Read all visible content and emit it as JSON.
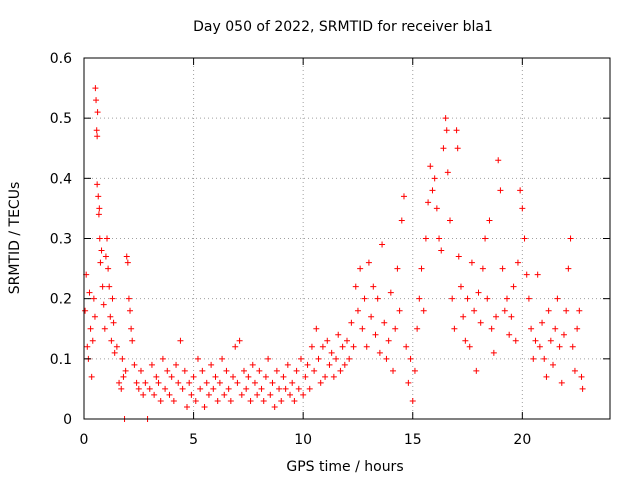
{
  "chart_data": {
    "type": "scatter",
    "title": "Day 050 of 2022, SRMTID for receiver bla1",
    "xlabel": "GPS time / hours",
    "ylabel": "SRMTID / TECUs",
    "xlim": [
      0,
      24
    ],
    "ylim": [
      0,
      0.6
    ],
    "x_ticks": [
      0,
      5,
      10,
      15,
      20
    ],
    "x_tick_labels": [
      "0",
      "5",
      "10",
      "15",
      "20"
    ],
    "y_ticks": [
      0,
      0.1,
      0.2,
      0.3,
      0.4,
      0.5,
      0.6
    ],
    "y_tick_labels": [
      "0",
      "0.1",
      "0.2",
      "0.3",
      "0.4",
      "0.5",
      "0.6"
    ],
    "grid": true,
    "marker": "plus",
    "series": [
      {
        "name": "SRMTID",
        "color": "#ff0000",
        "points": [
          [
            0.05,
            0.18
          ],
          [
            0.1,
            0.24
          ],
          [
            0.15,
            0.12
          ],
          [
            0.2,
            0.1
          ],
          [
            0.25,
            0.21
          ],
          [
            0.3,
            0.15
          ],
          [
            0.35,
            0.07
          ],
          [
            0.4,
            0.13
          ],
          [
            0.45,
            0.2
          ],
          [
            0.5,
            0.17
          ],
          [
            0.52,
            0.55
          ],
          [
            0.55,
            0.53
          ],
          [
            0.58,
            0.48
          ],
          [
            0.6,
            0.47
          ],
          [
            0.62,
            0.51
          ],
          [
            0.6,
            0.39
          ],
          [
            0.65,
            0.37
          ],
          [
            0.68,
            0.34
          ],
          [
            0.7,
            0.35
          ],
          [
            0.72,
            0.3
          ],
          [
            0.75,
            0.26
          ],
          [
            0.8,
            0.28
          ],
          [
            0.85,
            0.22
          ],
          [
            0.9,
            0.19
          ],
          [
            0.95,
            0.15
          ],
          [
            1.0,
            0.27
          ],
          [
            1.05,
            0.3
          ],
          [
            1.1,
            0.25
          ],
          [
            1.15,
            0.22
          ],
          [
            1.2,
            0.17
          ],
          [
            1.25,
            0.13
          ],
          [
            1.3,
            0.2
          ],
          [
            1.35,
            0.16
          ],
          [
            1.4,
            0.11
          ],
          [
            1.5,
            0.12
          ],
          [
            1.6,
            0.06
          ],
          [
            1.7,
            0.05
          ],
          [
            1.75,
            0.1
          ],
          [
            1.8,
            0.07
          ],
          [
            1.85,
            0.0
          ],
          [
            1.9,
            0.08
          ],
          [
            1.95,
            0.27
          ],
          [
            2.0,
            0.26
          ],
          [
            2.05,
            0.2
          ],
          [
            2.1,
            0.18
          ],
          [
            2.15,
            0.15
          ],
          [
            2.2,
            0.13
          ],
          [
            2.3,
            0.09
          ],
          [
            2.4,
            0.06
          ],
          [
            2.5,
            0.05
          ],
          [
            2.6,
            0.08
          ],
          [
            2.7,
            0.04
          ],
          [
            2.8,
            0.06
          ],
          [
            2.9,
            0.0
          ],
          [
            3.0,
            0.05
          ],
          [
            3.1,
            0.09
          ],
          [
            3.2,
            0.04
          ],
          [
            3.3,
            0.07
          ],
          [
            3.4,
            0.06
          ],
          [
            3.5,
            0.03
          ],
          [
            3.6,
            0.1
          ],
          [
            3.7,
            0.05
          ],
          [
            3.8,
            0.08
          ],
          [
            3.9,
            0.04
          ],
          [
            4.0,
            0.07
          ],
          [
            4.1,
            0.03
          ],
          [
            4.2,
            0.09
          ],
          [
            4.3,
            0.06
          ],
          [
            4.4,
            0.13
          ],
          [
            4.5,
            0.05
          ],
          [
            4.6,
            0.08
          ],
          [
            4.7,
            0.02
          ],
          [
            4.8,
            0.06
          ],
          [
            4.9,
            0.04
          ],
          [
            5.0,
            0.07
          ],
          [
            5.1,
            0.03
          ],
          [
            5.2,
            0.1
          ],
          [
            5.3,
            0.05
          ],
          [
            5.4,
            0.08
          ],
          [
            5.5,
            0.02
          ],
          [
            5.6,
            0.06
          ],
          [
            5.7,
            0.04
          ],
          [
            5.8,
            0.09
          ],
          [
            5.9,
            0.05
          ],
          [
            6.0,
            0.07
          ],
          [
            6.1,
            0.03
          ],
          [
            6.2,
            0.06
          ],
          [
            6.3,
            0.1
          ],
          [
            6.4,
            0.04
          ],
          [
            6.5,
            0.08
          ],
          [
            6.6,
            0.05
          ],
          [
            6.7,
            0.03
          ],
          [
            6.8,
            0.07
          ],
          [
            6.9,
            0.12
          ],
          [
            7.0,
            0.06
          ],
          [
            7.1,
            0.13
          ],
          [
            7.2,
            0.04
          ],
          [
            7.3,
            0.08
          ],
          [
            7.4,
            0.05
          ],
          [
            7.5,
            0.07
          ],
          [
            7.6,
            0.03
          ],
          [
            7.7,
            0.09
          ],
          [
            7.8,
            0.06
          ],
          [
            7.9,
            0.04
          ],
          [
            8.0,
            0.08
          ],
          [
            8.1,
            0.05
          ],
          [
            8.2,
            0.03
          ],
          [
            8.3,
            0.07
          ],
          [
            8.4,
            0.1
          ],
          [
            8.5,
            0.04
          ],
          [
            8.6,
            0.06
          ],
          [
            8.7,
            0.02
          ],
          [
            8.8,
            0.08
          ],
          [
            8.9,
            0.05
          ],
          [
            9.0,
            0.03
          ],
          [
            9.1,
            0.07
          ],
          [
            9.2,
            0.05
          ],
          [
            9.3,
            0.09
          ],
          [
            9.4,
            0.04
          ],
          [
            9.5,
            0.06
          ],
          [
            9.6,
            0.03
          ],
          [
            9.7,
            0.08
          ],
          [
            9.8,
            0.05
          ],
          [
            9.9,
            0.1
          ],
          [
            10.0,
            0.04
          ],
          [
            10.1,
            0.07
          ],
          [
            10.2,
            0.09
          ],
          [
            10.3,
            0.05
          ],
          [
            10.4,
            0.12
          ],
          [
            10.5,
            0.08
          ],
          [
            10.6,
            0.15
          ],
          [
            10.7,
            0.1
          ],
          [
            10.8,
            0.06
          ],
          [
            10.9,
            0.12
          ],
          [
            11.0,
            0.07
          ],
          [
            11.1,
            0.13
          ],
          [
            11.2,
            0.09
          ],
          [
            11.3,
            0.11
          ],
          [
            11.4,
            0.07
          ],
          [
            11.5,
            0.1
          ],
          [
            11.6,
            0.14
          ],
          [
            11.7,
            0.08
          ],
          [
            11.8,
            0.12
          ],
          [
            11.9,
            0.09
          ],
          [
            12.0,
            0.13
          ],
          [
            12.1,
            0.1
          ],
          [
            12.2,
            0.16
          ],
          [
            12.3,
            0.12
          ],
          [
            12.4,
            0.22
          ],
          [
            12.5,
            0.18
          ],
          [
            12.6,
            0.25
          ],
          [
            12.7,
            0.15
          ],
          [
            12.8,
            0.2
          ],
          [
            12.9,
            0.12
          ],
          [
            13.0,
            0.26
          ],
          [
            13.1,
            0.17
          ],
          [
            13.2,
            0.22
          ],
          [
            13.3,
            0.14
          ],
          [
            13.4,
            0.2
          ],
          [
            13.5,
            0.11
          ],
          [
            13.6,
            0.29
          ],
          [
            13.7,
            0.16
          ],
          [
            13.8,
            0.1
          ],
          [
            13.9,
            0.13
          ],
          [
            14.0,
            0.21
          ],
          [
            14.1,
            0.08
          ],
          [
            14.2,
            0.15
          ],
          [
            14.3,
            0.25
          ],
          [
            14.4,
            0.18
          ],
          [
            14.5,
            0.33
          ],
          [
            14.6,
            0.37
          ],
          [
            14.7,
            0.12
          ],
          [
            14.8,
            0.06
          ],
          [
            14.9,
            0.1
          ],
          [
            15.0,
            0.03
          ],
          [
            15.1,
            0.08
          ],
          [
            15.2,
            0.15
          ],
          [
            15.3,
            0.2
          ],
          [
            15.4,
            0.25
          ],
          [
            15.5,
            0.18
          ],
          [
            15.6,
            0.3
          ],
          [
            15.7,
            0.36
          ],
          [
            15.8,
            0.42
          ],
          [
            15.9,
            0.38
          ],
          [
            16.0,
            0.4
          ],
          [
            16.1,
            0.35
          ],
          [
            16.2,
            0.3
          ],
          [
            16.3,
            0.28
          ],
          [
            16.4,
            0.45
          ],
          [
            16.5,
            0.5
          ],
          [
            16.55,
            0.48
          ],
          [
            16.6,
            0.41
          ],
          [
            16.7,
            0.33
          ],
          [
            16.8,
            0.2
          ],
          [
            16.9,
            0.15
          ],
          [
            17.0,
            0.48
          ],
          [
            17.05,
            0.45
          ],
          [
            17.1,
            0.27
          ],
          [
            17.2,
            0.22
          ],
          [
            17.3,
            0.17
          ],
          [
            17.4,
            0.13
          ],
          [
            17.5,
            0.2
          ],
          [
            17.6,
            0.12
          ],
          [
            17.7,
            0.26
          ],
          [
            17.8,
            0.18
          ],
          [
            17.9,
            0.08
          ],
          [
            18.0,
            0.21
          ],
          [
            18.1,
            0.16
          ],
          [
            18.2,
            0.25
          ],
          [
            18.3,
            0.3
          ],
          [
            18.4,
            0.2
          ],
          [
            18.5,
            0.33
          ],
          [
            18.6,
            0.15
          ],
          [
            18.7,
            0.11
          ],
          [
            18.8,
            0.17
          ],
          [
            18.9,
            0.43
          ],
          [
            19.0,
            0.38
          ],
          [
            19.1,
            0.25
          ],
          [
            19.2,
            0.18
          ],
          [
            19.3,
            0.2
          ],
          [
            19.4,
            0.14
          ],
          [
            19.5,
            0.17
          ],
          [
            19.6,
            0.22
          ],
          [
            19.7,
            0.13
          ],
          [
            19.8,
            0.26
          ],
          [
            19.9,
            0.38
          ],
          [
            20.0,
            0.35
          ],
          [
            20.1,
            0.3
          ],
          [
            20.2,
            0.24
          ],
          [
            20.3,
            0.2
          ],
          [
            20.4,
            0.15
          ],
          [
            20.5,
            0.1
          ],
          [
            20.6,
            0.13
          ],
          [
            20.7,
            0.24
          ],
          [
            20.8,
            0.12
          ],
          [
            20.9,
            0.16
          ],
          [
            21.0,
            0.1
          ],
          [
            21.1,
            0.07
          ],
          [
            21.2,
            0.18
          ],
          [
            21.3,
            0.13
          ],
          [
            21.4,
            0.09
          ],
          [
            21.5,
            0.15
          ],
          [
            21.6,
            0.2
          ],
          [
            21.7,
            0.12
          ],
          [
            21.8,
            0.06
          ],
          [
            21.9,
            0.14
          ],
          [
            22.0,
            0.18
          ],
          [
            22.1,
            0.25
          ],
          [
            22.2,
            0.3
          ],
          [
            22.3,
            0.12
          ],
          [
            22.4,
            0.08
          ],
          [
            22.5,
            0.15
          ],
          [
            22.6,
            0.18
          ],
          [
            22.7,
            0.07
          ],
          [
            22.75,
            0.05
          ]
        ]
      }
    ]
  }
}
